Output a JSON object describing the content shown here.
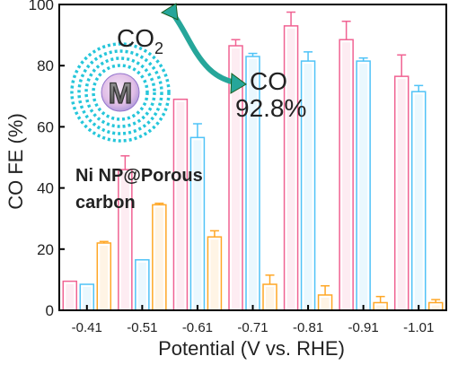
{
  "chart_data": {
    "type": "bar",
    "xlabel": "Potential (V vs. RHE)",
    "ylabel": "CO FE (%)",
    "ylim": [
      0,
      100
    ],
    "yticks": [
      0,
      20,
      40,
      60,
      80,
      100
    ],
    "categories": [
      "-0.41",
      "-0.51",
      "-0.61",
      "-0.71",
      "-0.81",
      "-0.91",
      "-1.01"
    ],
    "series": [
      {
        "color": "#f06292",
        "values": [
          9.5,
          46,
          69,
          86.5,
          93,
          88.5,
          76.5
        ],
        "errors": [
          0,
          4.5,
          0,
          2,
          4.5,
          6,
          7
        ]
      },
      {
        "color": "#4fc3f7",
        "values": [
          8.5,
          16.5,
          56.5,
          83,
          81.5,
          81.5,
          71.5
        ],
        "errors": [
          0,
          0,
          4.5,
          1,
          3,
          1,
          2
        ]
      },
      {
        "color": "#ffa726",
        "values": [
          22,
          34.5,
          24,
          8.5,
          5,
          2.5,
          2.5
        ],
        "errors": [
          0.5,
          0.5,
          2,
          3,
          3,
          2,
          1
        ]
      }
    ],
    "annotations": {
      "reactant": "CO",
      "reactant_subscript": "2",
      "product": "CO",
      "efficiency": "92.8%",
      "catalyst_line1": "Ni NP@Porous",
      "catalyst_line2": "carbon",
      "particle_letter": "M"
    },
    "colors": {
      "arrow": "#26a69a",
      "shell": "#26c6da"
    }
  }
}
